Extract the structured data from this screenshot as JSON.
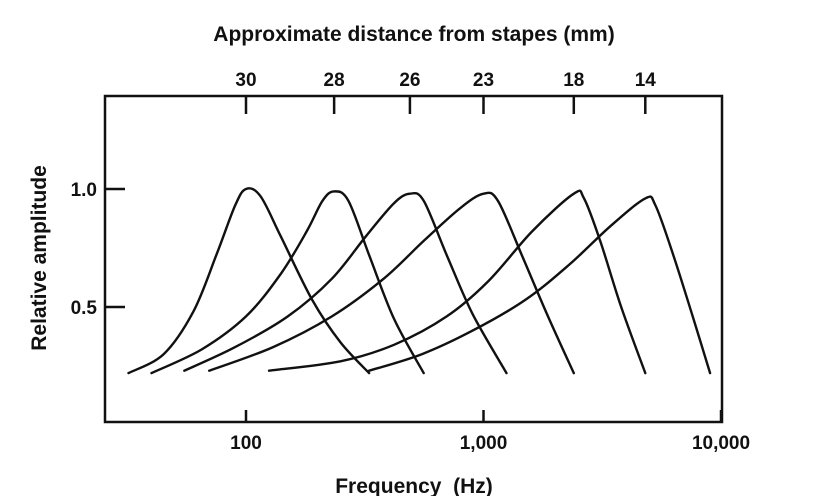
{
  "chart_data": {
    "type": "line",
    "title": "Approximate distance from stapes (mm)",
    "xlabel": "Frequency  (Hz)",
    "ylabel": "Relative amplitude",
    "x_scale": "log",
    "xlim": [
      30,
      9000
    ],
    "ylim": [
      0.0,
      1.32
    ],
    "x_ticks": [
      {
        "value": 100,
        "label": "100"
      },
      {
        "value": 1000,
        "label": "1,000"
      },
      {
        "value": 10000,
        "label": "10,000"
      }
    ],
    "y_ticks": [
      {
        "value": 1.0,
        "label": "1.0"
      },
      {
        "value": 0.5,
        "label": "0.5"
      }
    ],
    "top_axis": {
      "ticks": [
        {
          "frequency": 100,
          "label": "30"
        },
        {
          "frequency": 235,
          "label": "28"
        },
        {
          "frequency": 490,
          "label": "26"
        },
        {
          "frequency": 1000,
          "label": "23"
        },
        {
          "frequency": 2400,
          "label": "18"
        },
        {
          "frequency": 4800,
          "label": "14"
        }
      ]
    },
    "grid": false,
    "series": [
      {
        "peak_frequency": 100,
        "x": [
          32,
          45,
          60,
          75,
          90,
          100,
          115,
          140,
          190,
          250,
          330
        ],
        "y": [
          0.22,
          0.3,
          0.48,
          0.72,
          0.93,
          1.0,
          0.97,
          0.8,
          0.53,
          0.35,
          0.22
        ]
      },
      {
        "peak_frequency": 235,
        "x": [
          40,
          65,
          100,
          140,
          180,
          210,
          235,
          270,
          330,
          420,
          560
        ],
        "y": [
          0.22,
          0.32,
          0.46,
          0.64,
          0.82,
          0.95,
          0.99,
          0.95,
          0.72,
          0.45,
          0.22
        ]
      },
      {
        "peak_frequency": 490,
        "x": [
          55,
          90,
          150,
          230,
          320,
          420,
          490,
          560,
          700,
          900,
          1250
        ],
        "y": [
          0.23,
          0.33,
          0.46,
          0.62,
          0.8,
          0.94,
          0.98,
          0.95,
          0.72,
          0.47,
          0.22
        ]
      },
      {
        "peak_frequency": 1000,
        "x": [
          70,
          130,
          230,
          380,
          560,
          800,
          1000,
          1150,
          1450,
          1850,
          2400
        ],
        "y": [
          0.23,
          0.33,
          0.46,
          0.62,
          0.78,
          0.92,
          0.98,
          0.95,
          0.72,
          0.47,
          0.22
        ]
      },
      {
        "peak_frequency": 2400,
        "x": [
          125,
          250,
          420,
          700,
          1050,
          1600,
          2400,
          2650,
          3100,
          3800,
          4800
        ],
        "y": [
          0.23,
          0.27,
          0.34,
          0.46,
          0.61,
          0.82,
          0.98,
          0.96,
          0.78,
          0.5,
          0.22
        ]
      },
      {
        "peak_frequency": 4800,
        "x": [
          330,
          550,
          900,
          1500,
          2300,
          3400,
          4800,
          5300,
          6300,
          7600,
          9000
        ],
        "y": [
          0.23,
          0.3,
          0.4,
          0.53,
          0.68,
          0.84,
          0.96,
          0.93,
          0.72,
          0.46,
          0.22
        ]
      }
    ]
  }
}
